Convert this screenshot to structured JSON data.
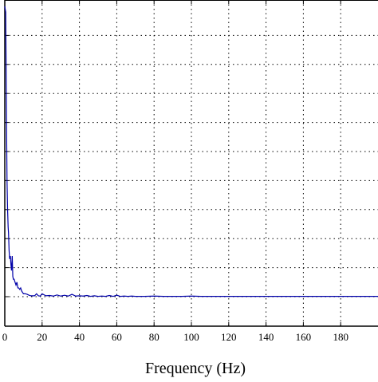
{
  "chart_data": {
    "type": "line",
    "title": "",
    "xlabel": "Frequency (Hz)",
    "ylabel": "",
    "xlim": [
      0,
      200
    ],
    "ylim": [
      0,
      1
    ],
    "x_ticks": [
      0,
      20,
      40,
      60,
      80,
      100,
      120,
      140,
      160,
      180
    ],
    "x_tick_labels": [
      "0",
      "20",
      "40",
      "60",
      "80",
      "100",
      "120",
      "140",
      "160",
      "180"
    ],
    "y_grid_values": [
      0.1,
      0.2,
      0.3,
      0.4,
      0.5,
      0.6,
      0.7,
      0.8,
      0.9
    ],
    "grid": true,
    "grid_style": "dotted",
    "line_color": "#0000a8",
    "series": [
      {
        "x": [
          0,
          0.5,
          0.8,
          1.0,
          1.2,
          1.5,
          1.8,
          2.0,
          2.3,
          2.6,
          3.0,
          3.3,
          3.6,
          4.0,
          4.3,
          4.6,
          5.0,
          5.5,
          6.0,
          6.5,
          7.0,
          7.5,
          8.0,
          8.5,
          9.0,
          9.5,
          10,
          11,
          12,
          13,
          14,
          15,
          16,
          17,
          18,
          19,
          20,
          22,
          24,
          26,
          28,
          30,
          32,
          34,
          36,
          38,
          40,
          42,
          44,
          46,
          48,
          50,
          52,
          54,
          56,
          58,
          60,
          62,
          64,
          66,
          68,
          70,
          75,
          80,
          85,
          90,
          95,
          100,
          105,
          110,
          120,
          130,
          140,
          150,
          160,
          170,
          180,
          190,
          200
        ],
        "y": [
          1.0,
          0.98,
          0.72,
          0.55,
          0.4,
          0.3,
          0.24,
          0.22,
          0.16,
          0.13,
          0.14,
          0.11,
          0.09,
          0.14,
          0.07,
          0.06,
          0.06,
          0.05,
          0.04,
          0.05,
          0.03,
          0.03,
          0.025,
          0.03,
          0.02,
          0.015,
          0.01,
          0.01,
          0.008,
          0.005,
          0.003,
          0.003,
          0.003,
          0.01,
          0.003,
          0.002,
          0.01,
          0.003,
          0.004,
          0.002,
          0.006,
          0.002,
          0.005,
          0.002,
          0.008,
          0.002,
          0.003,
          0.002,
          0.004,
          0.001,
          0.003,
          0.001,
          0.002,
          0.001,
          0.004,
          0.001,
          0.005,
          0.001,
          0.002,
          0.001,
          0.002,
          0.001,
          0.001,
          0.002,
          0.001,
          0.001,
          0.001,
          0.002,
          0.001,
          0.001,
          0.001,
          0.001,
          0.001,
          0.001,
          0.001,
          0.001,
          0.001,
          0.001,
          0.001
        ]
      }
    ]
  }
}
